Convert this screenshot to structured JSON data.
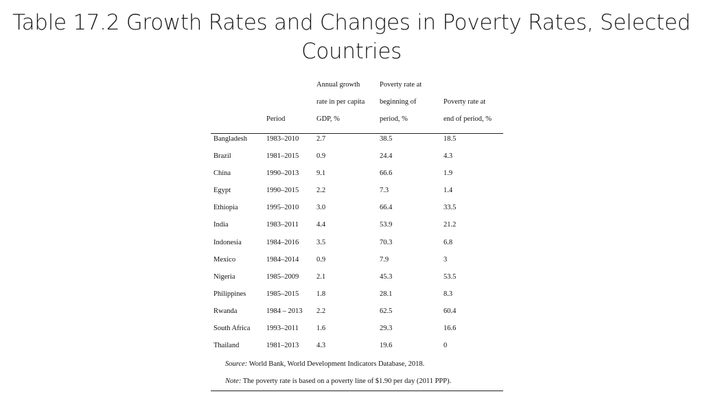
{
  "slide": {
    "title_line1": "Table 17.2 Growth Rates and Changes in Poverty Rates, Selected",
    "title_line2": "Countries"
  },
  "table": {
    "headers": {
      "period": "Period",
      "growth": [
        "Annual growth",
        "rate in per capita",
        "GDP, %"
      ],
      "begin": [
        "Poverty rate at",
        "beginning of",
        "period, %"
      ],
      "end": [
        "Poverty rate at",
        "end of period, %"
      ]
    },
    "rows": [
      [
        "Bangladesh",
        "1983–2010",
        "2.7",
        "38.5",
        "18.5"
      ],
      [
        "Brazil",
        "1981–2015",
        "0.9",
        "24.4",
        "4.3"
      ],
      [
        "China",
        "1990–2013",
        "9.1",
        "66.6",
        "1.9"
      ],
      [
        "Egypt",
        "1990–2015",
        "2.2",
        "7.3",
        "1.4"
      ],
      [
        "Ethiopia",
        "1995–2010",
        "3.0",
        "66.4",
        "33.5"
      ],
      [
        "India",
        "1983–2011",
        "4.4",
        "53.9",
        "21.2"
      ],
      [
        "Indonesia",
        "1984–2016",
        "3.5",
        "70.3",
        "6.8"
      ],
      [
        "Mexico",
        "1984–2014",
        "0.9",
        "7.9",
        "3"
      ],
      [
        "Nigeria",
        "1985–2009",
        "2.1",
        "45.3",
        "53.5"
      ],
      [
        "Philippines",
        "1985–2015",
        "1.8",
        "28.1",
        "8.3"
      ],
      [
        "Rwanda",
        "1984 – 2013",
        "2.2",
        "62.5",
        "60.4"
      ],
      [
        "South Africa",
        "1993–2011",
        "1.6",
        "29.3",
        "16.6"
      ],
      [
        "Thailand",
        "1981–2013",
        "4.3",
        "19.6",
        "0"
      ]
    ],
    "source_label": "Source:",
    "source_text": " World Bank, World Development Indicators Database, 2018.",
    "note_label": "Note:",
    "note_text": " The poverty rate is based on a poverty line of $1.90 per day (2011 PPP)."
  }
}
